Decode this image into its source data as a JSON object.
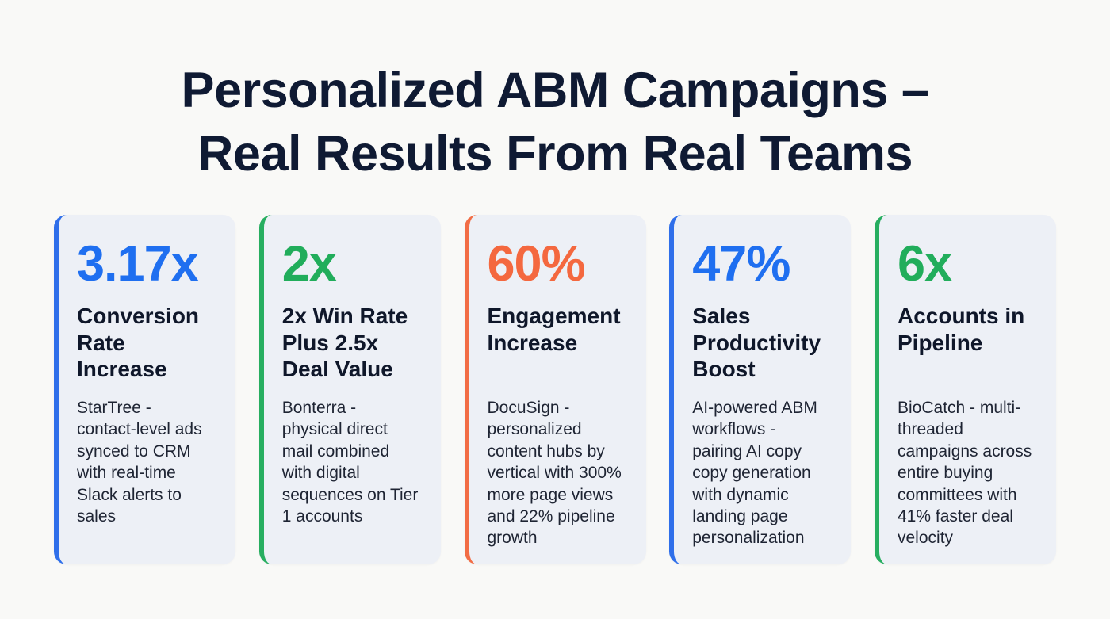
{
  "title": {
    "line1": "Personalized ABM Campaigns –",
    "line2": "Real Results From Real Teams"
  },
  "colors": {
    "blue": "#1f6ff0",
    "green": "#21ad5b",
    "orange": "#f4683f",
    "card_background": "#edf0f6",
    "page_background": "#f9f9f7",
    "heading_text": "#0f172a"
  },
  "cards": [
    {
      "accent": "blue",
      "stat": "3.17x",
      "heading": "Conversion Rate Increase",
      "heading_lines": [
        "Conversion",
        "Rate",
        "Increase"
      ],
      "body": "StarTree - contact-level ads synced to CRM with real-time Slack alerts to sales",
      "body_lines": [
        "StarTree -",
        "contact-level ads",
        "synced to CRM",
        "with real-time",
        "Slack alerts to",
        "sales"
      ]
    },
    {
      "accent": "green",
      "stat": "2x",
      "heading": "2x Win Rate Plus 2.5x Deal Value",
      "heading_lines": [
        "2x Win Rate",
        "Plus 2.5x",
        "Deal Value"
      ],
      "body": "Bonterra - physical direct mail combined with digital sequences on Tier 1 accounts",
      "body_lines": [
        "Bonterra -",
        "physical direct",
        "mail combined",
        "with digital",
        "sequences on Tier",
        "1 accounts"
      ]
    },
    {
      "accent": "orange",
      "stat": "60%",
      "heading": "Engagement Increase",
      "heading_lines": [
        "Engagement",
        "Increase"
      ],
      "body": "DocuSign - personalized content hubs by vertical with 300% more page views and 22% pipeline growth",
      "body_lines": [
        "DocuSign -",
        "personalized",
        "content hubs by",
        "vertical with 300%",
        "more page views",
        "and 22% pipeline",
        "growth"
      ]
    },
    {
      "accent": "blue",
      "stat": "47%",
      "heading": "Sales Productivity Boost",
      "heading_lines": [
        "Sales",
        "Productivity",
        "Boost"
      ],
      "body": "AI-powered ABM workflows - pairing AI copy copy generation with dynamic landing page personalization",
      "body_lines": [
        "AI-powered ABM",
        "workflows -",
        "pairing AI copy",
        "copy generation",
        "with dynamic",
        "landing page",
        "personalization"
      ]
    },
    {
      "accent": "green",
      "stat": "6x",
      "heading": "Accounts in Pipeline",
      "heading_lines": [
        "Accounts in",
        "Pipeline"
      ],
      "body": "BioCatch - multi-threaded campaigns across entire buying committees with 41% faster deal velocity",
      "body_lines": [
        "BioCatch - multi-",
        "threaded",
        "campaigns across",
        "entire buying",
        "committees with",
        "41% faster deal",
        "velocity"
      ]
    }
  ]
}
